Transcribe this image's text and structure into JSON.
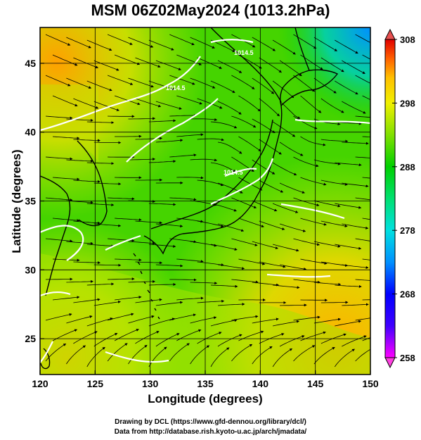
{
  "title": "MSM 06Z02May2024 (1013.2hPa)",
  "map": {
    "xlabel": "Longitude (degrees)",
    "ylabel": "Latitude  (degrees)",
    "lon_ticks": [
      "120",
      "125",
      "130",
      "135",
      "140",
      "145",
      "150"
    ],
    "lat_ticks": [
      "25",
      "30",
      "35",
      "40",
      "45"
    ],
    "contour_label": "1014.5",
    "lon_range": [
      120,
      150
    ],
    "lat_range": [
      22.4,
      47.6
    ]
  },
  "colorbar": {
    "ticks": [
      "308",
      "298",
      "288",
      "278",
      "268",
      "258"
    ],
    "range": [
      258,
      308
    ],
    "colors": [
      "#ff00ff",
      "#6a00ff",
      "#0000ff",
      "#0078ff",
      "#00d0ff",
      "#00e0a0",
      "#00d000",
      "#40d000",
      "#9ee000",
      "#e6f000",
      "#ffd000",
      "#ff9000",
      "#ff4000",
      "#e00000"
    ]
  },
  "credits": {
    "line1": "Drawing by DCL (https://www.gfd-dennou.org/library/dcl/)",
    "line2": "Data from http://database.rish.kyoto-u.ac.jp/arch/jmadata/"
  }
}
